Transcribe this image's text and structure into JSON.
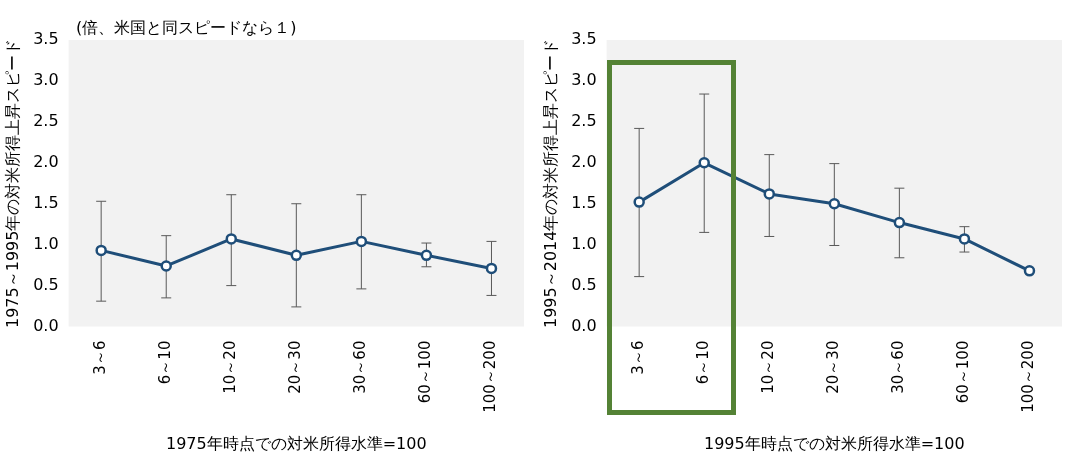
{
  "chart_data": [
    {
      "type": "line",
      "xlabel": "1975年時点での対米所得水準=100",
      "ylabel": "1975～1995年の対米所得上昇スピード",
      "annotations": [
        "(倍、米国と同スピードなら１)"
      ],
      "categories": [
        "3～6",
        "6～10",
        "10～20",
        "20～30",
        "30～60",
        "60～100",
        "100～200"
      ],
      "series": [
        {
          "color": "#1f4e79",
          "values": [
            0.93,
            0.74,
            1.07,
            0.87,
            1.04,
            0.87,
            0.71
          ],
          "errors": [
            [
              0.31,
              1.53
            ],
            [
              0.35,
              1.11
            ],
            [
              0.5,
              1.61
            ],
            [
              0.24,
              1.5
            ],
            [
              0.46,
              1.61
            ],
            [
              0.73,
              1.02
            ],
            [
              0.38,
              1.04
            ]
          ]
        }
      ],
      "ylim": [
        0,
        3.5
      ],
      "yticks": [
        {
          "value": 0,
          "label": "0.0"
        },
        0.5,
        {
          "value": 1,
          "label": "1.0"
        },
        1.5,
        {
          "value": 2,
          "label": "2.0"
        },
        2.5,
        {
          "value": 3,
          "label": "3.0"
        },
        3.5
      ],
      "grid": false,
      "legend": false,
      "marker": "circle",
      "line_style": "solid"
    },
    {
      "type": "line",
      "xlabel": "1995年時点での対米所得水準=100",
      "ylabel": "1995～2014年の対米所得上昇スピード",
      "categories": [
        "3～6",
        "6～10",
        "10～20",
        "20～30",
        "30～60",
        "60～100",
        "100～200"
      ],
      "series": [
        {
          "color": "#1f4e79",
          "values": [
            1.52,
            2.0,
            1.62,
            1.5,
            1.27,
            1.07,
            0.68
          ],
          "errors": [
            [
              0.61,
              2.42
            ],
            [
              1.15,
              2.84
            ],
            [
              1.1,
              2.1
            ],
            [
              0.99,
              1.99
            ],
            [
              0.84,
              1.69
            ],
            [
              0.91,
              1.22
            ],
            null
          ]
        }
      ],
      "ylim": [
        0,
        3.5
      ],
      "yticks": [
        {
          "value": 0,
          "label": "0.0"
        },
        0.5,
        {
          "value": 1,
          "label": "1.0"
        },
        1.5,
        {
          "value": 2,
          "label": "2.0"
        },
        2.5,
        {
          "value": 3,
          "label": "3.0"
        },
        3.5
      ],
      "grid": false,
      "legend": false,
      "marker": "circle",
      "line_style": "solid"
    }
  ]
}
